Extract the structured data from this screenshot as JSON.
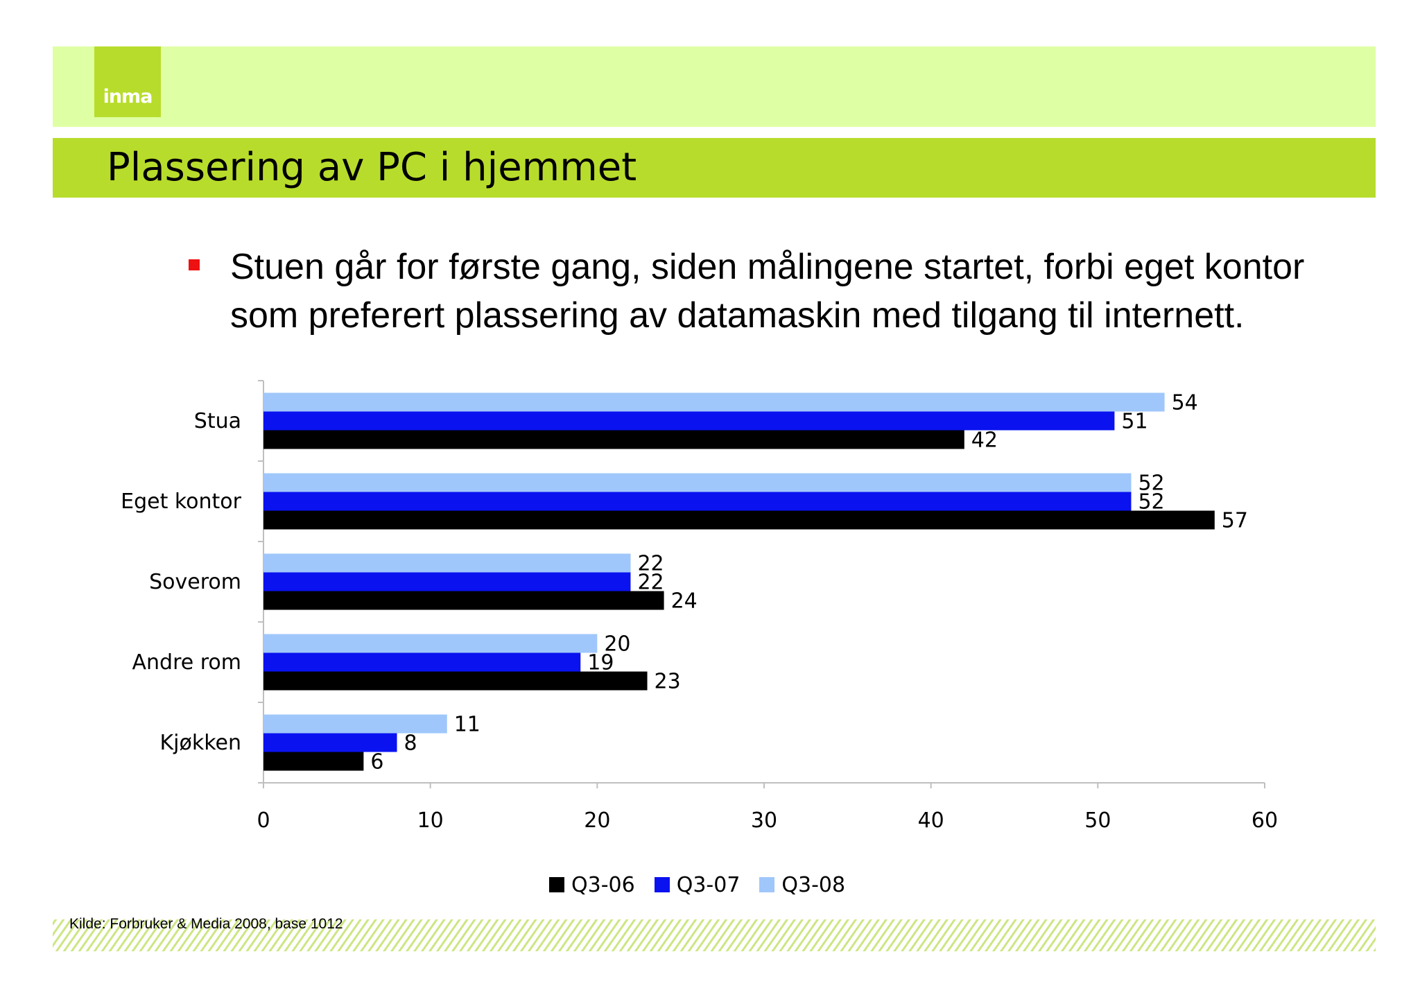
{
  "slide": {
    "logo_text": "inma",
    "title": "Plassering av PC i hjemmet",
    "bullet": "Stuen går for første gang, siden målingene startet, forbi eget kontor som preferert plassering av datamaskin med tilgang til internett.",
    "source": "Kilde: Forbruker & Media 2008, base 1012"
  },
  "colors": {
    "top_band": "#dfffa4",
    "title_bar": "#b8dc2c",
    "bullet": "#ee1111"
  },
  "chart_data": {
    "type": "bar",
    "orientation": "horizontal",
    "categories": [
      "Stua",
      "Eget kontor",
      "Soverom",
      "Andre rom",
      "Kjøkken"
    ],
    "series": [
      {
        "name": "Q3-06",
        "color": "#000000",
        "values": [
          42,
          57,
          24,
          23,
          6
        ]
      },
      {
        "name": "Q3-07",
        "color": "#0a12f0",
        "values": [
          51,
          52,
          22,
          19,
          8
        ]
      },
      {
        "name": "Q3-08",
        "color": "#9fc7fb",
        "values": [
          54,
          52,
          22,
          20,
          11
        ]
      }
    ],
    "xlim": [
      0,
      60
    ],
    "xticks": [
      0,
      10,
      20,
      30,
      40,
      50,
      60
    ],
    "data_labels": true,
    "grid": false,
    "legend": "bottom"
  }
}
